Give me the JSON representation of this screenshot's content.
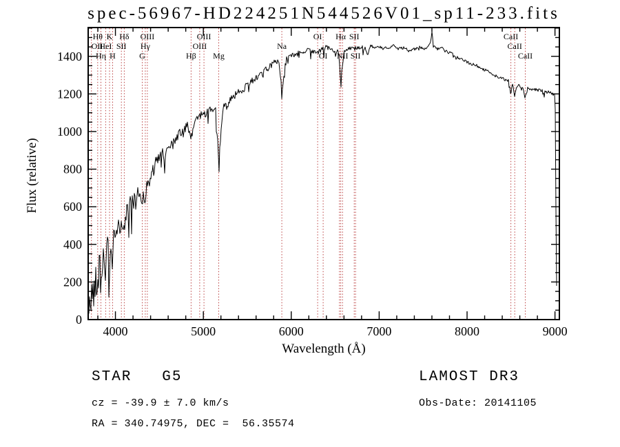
{
  "title": "spec-56967-HD224251N544526V01_sp11-233.fits",
  "footer": {
    "class_label": "STAR   G5",
    "survey": "LAMOST DR3",
    "cz": "cz = -39.9 ± 7.0 km/s",
    "obs_date": "Obs-Date: 20141105",
    "coords": "RA = 340.74975, DEC =  56.35574"
  },
  "chart_data": {
    "type": "line",
    "title": "spec-56967-HD224251N544526V01_sp11-233.fits",
    "xlabel": "Wavelength (Å)",
    "ylabel": "Flux (relative)",
    "xlim": [
      3690,
      9050
    ],
    "ylim": [
      0,
      1553
    ],
    "x_ticks": [
      4000,
      5000,
      6000,
      7000,
      8000,
      9000
    ],
    "y_ticks": [
      0,
      200,
      400,
      600,
      800,
      1000,
      1200,
      1400
    ],
    "x_minor_step": 200,
    "y_minor_step": 50,
    "grid": false,
    "line_color": "#000000",
    "marker_color": "#bb4040",
    "spectral_lines": [
      {
        "label": "OII",
        "wl": 3727,
        "row": 1
      },
      {
        "label": "Hθ",
        "wl": 3798,
        "row": 0
      },
      {
        "label": "Hη",
        "wl": 3835,
        "row": 2
      },
      {
        "label": "HeI",
        "wl": 3889,
        "row": 1
      },
      {
        "label": "K",
        "wl": 3933,
        "row": 0
      },
      {
        "label": "H",
        "wl": 3968,
        "row": 2
      },
      {
        "label": "SII",
        "wl": 4068,
        "row": 1
      },
      {
        "label": "Hδ",
        "wl": 4101,
        "row": 0
      },
      {
        "label": "G",
        "wl": 4305,
        "row": 2
      },
      {
        "label": "Hγ",
        "wl": 4340,
        "row": 1
      },
      {
        "label": "OIII",
        "wl": 4363,
        "row": 0
      },
      {
        "label": "Hβ",
        "wl": 4861,
        "row": 2
      },
      {
        "label": "OIII",
        "wl": 4959,
        "row": 1
      },
      {
        "label": "OIII",
        "wl": 5007,
        "row": 0
      },
      {
        "label": "Mg",
        "wl": 5175,
        "row": 2
      },
      {
        "label": "Na",
        "wl": 5893,
        "row": 1
      },
      {
        "label": "OI",
        "wl": 6300,
        "row": 0
      },
      {
        "label": "OI",
        "wl": 6363,
        "row": 2
      },
      {
        "label": "",
        "wl": 6548,
        "row": 2
      },
      {
        "label": "Hα",
        "wl": 6563,
        "row": 0
      },
      {
        "label": "NII",
        "wl": 6583,
        "row": 2
      },
      {
        "label": "SII",
        "wl": 6716,
        "row": 0
      },
      {
        "label": "SII",
        "wl": 6731,
        "row": 2
      },
      {
        "label": "CaII",
        "wl": 8498,
        "row": 0
      },
      {
        "label": "CaII",
        "wl": 8542,
        "row": 1
      },
      {
        "label": "CaII",
        "wl": 8662,
        "row": 2
      }
    ],
    "spectrum_anchors": [
      [
        3693,
        40
      ],
      [
        3698,
        15
      ],
      [
        3703,
        90
      ],
      [
        3708,
        45
      ],
      [
        3714,
        130
      ],
      [
        3720,
        70
      ],
      [
        3726,
        160
      ],
      [
        3733,
        95
      ],
      [
        3740,
        190
      ],
      [
        3748,
        130
      ],
      [
        3756,
        110
      ],
      [
        3764,
        230
      ],
      [
        3772,
        170
      ],
      [
        3780,
        280
      ],
      [
        3790,
        220
      ],
      [
        3800,
        170
      ],
      [
        3810,
        260
      ],
      [
        3820,
        320
      ],
      [
        3830,
        250
      ],
      [
        3840,
        205
      ],
      [
        3850,
        300
      ],
      [
        3862,
        345
      ],
      [
        3875,
        305
      ],
      [
        3889,
        255
      ],
      [
        3900,
        340
      ],
      [
        3912,
        390
      ],
      [
        3922,
        340
      ],
      [
        3933,
        235
      ],
      [
        3944,
        320
      ],
      [
        3955,
        385
      ],
      [
        3968,
        280
      ],
      [
        3980,
        415
      ],
      [
        4000,
        430
      ],
      [
        4025,
        470
      ],
      [
        4050,
        505
      ],
      [
        4068,
        475
      ],
      [
        4085,
        535
      ],
      [
        4101,
        465
      ],
      [
        4118,
        555
      ],
      [
        4145,
        595
      ],
      [
        4172,
        618
      ],
      [
        4200,
        648
      ],
      [
        4227,
        605
      ],
      [
        4252,
        688
      ],
      [
        4280,
        658
      ],
      [
        4305,
        628
      ],
      [
        4322,
        678
      ],
      [
        4340,
        648
      ],
      [
        4362,
        718
      ],
      [
        4383,
        698
      ],
      [
        4405,
        778
      ],
      [
        4432,
        798
      ],
      [
        4460,
        828
      ],
      [
        4500,
        858
      ],
      [
        4532,
        878
      ],
      [
        4570,
        868
      ],
      [
        4600,
        918
      ],
      [
        4640,
        948
      ],
      [
        4672,
        928
      ],
      [
        4705,
        978
      ],
      [
        4742,
        1000
      ],
      [
        4782,
        1008
      ],
      [
        4822,
        1028
      ],
      [
        4861,
        952
      ],
      [
        4900,
        1058
      ],
      [
        4942,
        1078
      ],
      [
        4982,
        1088
      ],
      [
        5022,
        1098
      ],
      [
        5062,
        1108
      ],
      [
        5102,
        1118
      ],
      [
        5142,
        1108
      ],
      [
        5167,
        905
      ],
      [
        5175,
        815
      ],
      [
        5186,
        900
      ],
      [
        5212,
        1078
      ],
      [
        5242,
        1148
      ],
      [
        5272,
        1128
      ],
      [
        5302,
        1178
      ],
      [
        5342,
        1188
      ],
      [
        5382,
        1198
      ],
      [
        5422,
        1218
      ],
      [
        5462,
        1228
      ],
      [
        5502,
        1258
      ],
      [
        5542,
        1268
      ],
      [
        5582,
        1278
      ],
      [
        5622,
        1298
      ],
      [
        5662,
        1298
      ],
      [
        5702,
        1328
      ],
      [
        5742,
        1338
      ],
      [
        5782,
        1358
      ],
      [
        5822,
        1378
      ],
      [
        5862,
        1368
      ],
      [
        5886,
        1255
      ],
      [
        5893,
        1160
      ],
      [
        5906,
        1265
      ],
      [
        5932,
        1378
      ],
      [
        5962,
        1398
      ],
      [
        6002,
        1408
      ],
      [
        6052,
        1398
      ],
      [
        6102,
        1428
      ],
      [
        6152,
        1418
      ],
      [
        6202,
        1438
      ],
      [
        6252,
        1428
      ],
      [
        6302,
        1418
      ],
      [
        6352,
        1438
      ],
      [
        6402,
        1448
      ],
      [
        6452,
        1438
      ],
      [
        6497,
        1415
      ],
      [
        6532,
        1438
      ],
      [
        6556,
        1330
      ],
      [
        6563,
        1215
      ],
      [
        6576,
        1335
      ],
      [
        6602,
        1428
      ],
      [
        6652,
        1448
      ],
      [
        6702,
        1438
      ],
      [
        6752,
        1448
      ],
      [
        6802,
        1448
      ],
      [
        6852,
        1438
      ],
      [
        6867,
        1400
      ],
      [
        6902,
        1455
      ],
      [
        6952,
        1445
      ],
      [
        7002,
        1448
      ],
      [
        7052,
        1438
      ],
      [
        7102,
        1448
      ],
      [
        7162,
        1458
      ],
      [
        7222,
        1438
      ],
      [
        7282,
        1448
      ],
      [
        7342,
        1428
      ],
      [
        7402,
        1438
      ],
      [
        7462,
        1448
      ],
      [
        7522,
        1438
      ],
      [
        7582,
        1468
      ],
      [
        7601,
        1528
      ],
      [
        7616,
        1468
      ],
      [
        7652,
        1438
      ],
      [
        7702,
        1448
      ],
      [
        7752,
        1428
      ],
      [
        7802,
        1418
      ],
      [
        7852,
        1408
      ],
      [
        7902,
        1388
      ],
      [
        7952,
        1383
      ],
      [
        8002,
        1368
      ],
      [
        8062,
        1358
      ],
      [
        8122,
        1348
      ],
      [
        8182,
        1333
      ],
      [
        8242,
        1318
      ],
      [
        8302,
        1303
      ],
      [
        8362,
        1288
      ],
      [
        8422,
        1278
      ],
      [
        8472,
        1268
      ],
      [
        8498,
        1198
      ],
      [
        8516,
        1253
      ],
      [
        8542,
        1183
      ],
      [
        8562,
        1243
      ],
      [
        8602,
        1243
      ],
      [
        8632,
        1238
      ],
      [
        8662,
        1173
      ],
      [
        8682,
        1233
      ],
      [
        8722,
        1228
      ],
      [
        8772,
        1223
      ],
      [
        8822,
        1218
      ],
      [
        8872,
        1213
      ],
      [
        8922,
        1208
      ],
      [
        8962,
        1203
      ],
      [
        8992,
        1198
      ],
      [
        9002,
        1175
      ],
      [
        9007,
        880
      ],
      [
        9013,
        420
      ],
      [
        9019,
        170
      ]
    ],
    "noise_profile": [
      [
        3690,
        80
      ],
      [
        3950,
        65
      ],
      [
        4150,
        50
      ],
      [
        4400,
        40
      ],
      [
        4700,
        30
      ],
      [
        5000,
        24
      ],
      [
        5300,
        20
      ],
      [
        5700,
        16
      ],
      [
        6100,
        14
      ],
      [
        6600,
        11
      ],
      [
        7000,
        9
      ],
      [
        7600,
        7
      ],
      [
        8000,
        8
      ],
      [
        8600,
        9
      ],
      [
        9050,
        10
      ]
    ],
    "noise_seed": 42
  }
}
